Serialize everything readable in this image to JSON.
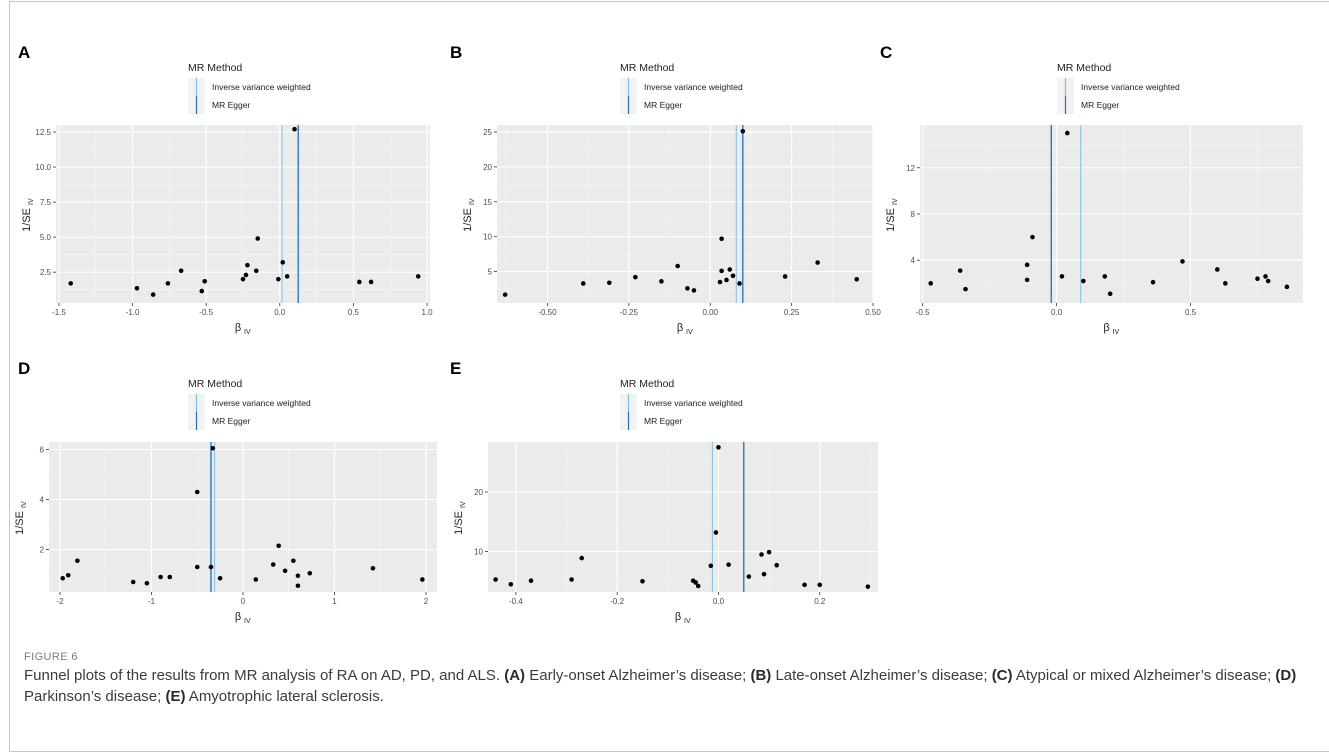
{
  "figure": {
    "label": "FIGURE 6",
    "caption": [
      {
        "t": "Funnel plots of the results from MR analysis of RA on AD, PD, and ALS. ",
        "b": false
      },
      {
        "t": "(A)",
        "b": true
      },
      {
        "t": " Early-onset Alzheimer’s disease; ",
        "b": false
      },
      {
        "t": "(B)",
        "b": true
      },
      {
        "t": " Late-onset Alzheimer’s disease; ",
        "b": false
      },
      {
        "t": "(C)",
        "b": true
      },
      {
        "t": " Atypical or mixed Alzheimer’s disease; ",
        "b": false
      },
      {
        "t": "(D)",
        "b": true
      },
      {
        "t": " Parkinson’s disease; ",
        "b": false
      },
      {
        "t": "(E)",
        "b": true
      },
      {
        "t": " Amyotrophic lateral sclerosis.",
        "b": false
      }
    ]
  },
  "colors": {
    "ivw": "#7fc1e6",
    "egger": "#1f6fb5",
    "panel_bg": "#ebebeb",
    "grid": "#ffffff",
    "point": "#000000"
  },
  "chart_data": [
    {
      "type": "scatter",
      "panel_label": "A",
      "legend": {
        "title": "MR Method",
        "entries": [
          "Inverse variance weighted",
          "MR Egger"
        ],
        "position": "top"
      },
      "xlabel_main": "β",
      "xlabel_sub": "IV",
      "ylabel_main": "1/SE",
      "ylabel_sub": "IV",
      "xlim": [
        -1.52,
        1.02
      ],
      "ylim": [
        0.3,
        13.0
      ],
      "xticks": [
        -1.5,
        -1.0,
        -0.5,
        0.0,
        0.5,
        1.0
      ],
      "xtick_labels": [
        "-1.5",
        "-1.0",
        "-0.5",
        "0.0",
        "0.5",
        "1.0"
      ],
      "yticks": [
        2.5,
        5.0,
        7.5,
        10.0,
        12.5
      ],
      "ytick_labels": [
        "2.5",
        "5.0",
        "7.5",
        "10.0",
        "12.5"
      ],
      "grid": true,
      "ivw_estimate": 0.015,
      "egger_estimate": 0.125,
      "points": [
        [
          -1.42,
          1.7
        ],
        [
          -0.97,
          1.35
        ],
        [
          -0.86,
          0.9
        ],
        [
          -0.76,
          1.7
        ],
        [
          -0.67,
          2.6
        ],
        [
          -0.53,
          1.15
        ],
        [
          -0.51,
          1.85
        ],
        [
          -0.25,
          2.0
        ],
        [
          -0.23,
          2.3
        ],
        [
          -0.22,
          3.0
        ],
        [
          -0.16,
          2.6
        ],
        [
          -0.15,
          4.9
        ],
        [
          -0.01,
          2.0
        ],
        [
          0.02,
          3.2
        ],
        [
          0.05,
          2.2
        ],
        [
          0.1,
          12.7
        ],
        [
          0.54,
          1.8
        ],
        [
          0.62,
          1.8
        ],
        [
          0.94,
          2.2
        ]
      ]
    },
    {
      "type": "scatter",
      "panel_label": "B",
      "legend": {
        "title": "MR Method",
        "entries": [
          "Inverse variance weighted",
          "MR Egger"
        ],
        "position": "top"
      },
      "xlabel_main": "β",
      "xlabel_sub": "IV",
      "ylabel_main": "1/SE",
      "ylabel_sub": "IV",
      "xlim": [
        -0.655,
        0.5
      ],
      "ylim": [
        0.5,
        26.0
      ],
      "xticks": [
        -0.5,
        -0.25,
        0.0,
        0.25,
        0.5
      ],
      "xtick_labels": [
        "-0.50",
        "-0.25",
        "0.00",
        "0.25",
        "0.50"
      ],
      "yticks": [
        5,
        10,
        15,
        20,
        25
      ],
      "ytick_labels": [
        "5",
        "10",
        "15",
        "20",
        "25"
      ],
      "grid": true,
      "ivw_estimate": 0.08,
      "egger_estimate": 0.1,
      "points": [
        [
          -0.63,
          1.7
        ],
        [
          -0.39,
          3.3
        ],
        [
          -0.31,
          3.4
        ],
        [
          -0.23,
          4.2
        ],
        [
          -0.15,
          3.6
        ],
        [
          -0.1,
          5.8
        ],
        [
          -0.07,
          2.6
        ],
        [
          -0.05,
          2.3
        ],
        [
          0.03,
          3.5
        ],
        [
          0.035,
          9.7
        ],
        [
          0.035,
          5.1
        ],
        [
          0.05,
          3.8
        ],
        [
          0.06,
          5.3
        ],
        [
          0.07,
          4.4
        ],
        [
          0.09,
          3.3
        ],
        [
          0.1,
          25.1
        ],
        [
          0.23,
          4.3
        ],
        [
          0.33,
          6.3
        ],
        [
          0.45,
          3.9
        ]
      ]
    },
    {
      "type": "scatter",
      "panel_label": "C",
      "legend": {
        "title": "MR Method",
        "entries": [
          "Inverse variance weighted",
          "MR Egger"
        ],
        "position": "top"
      },
      "xlabel_main": "β",
      "xlabel_sub": "IV",
      "ylabel_main": "1/SE",
      "ylabel_sub": "IV",
      "xlim": [
        -0.51,
        0.92
      ],
      "ylim": [
        0.3,
        15.7
      ],
      "xticks": [
        -0.5,
        0.0,
        0.5
      ],
      "xtick_labels": [
        "-0.5",
        "0.0",
        "0.5"
      ],
      "yticks": [
        4,
        8,
        12
      ],
      "ytick_labels": [
        "4",
        "8",
        "12"
      ],
      "grid": true,
      "ivw_estimate": 0.09,
      "egger_estimate": -0.02,
      "points": [
        [
          -0.47,
          2.0
        ],
        [
          -0.36,
          3.1
        ],
        [
          -0.34,
          1.5
        ],
        [
          -0.11,
          3.6
        ],
        [
          -0.11,
          2.3
        ],
        [
          -0.09,
          6.0
        ],
        [
          0.02,
          2.6
        ],
        [
          0.04,
          15.0
        ],
        [
          0.1,
          2.2
        ],
        [
          0.18,
          2.6
        ],
        [
          0.2,
          1.1
        ],
        [
          0.36,
          2.1
        ],
        [
          0.47,
          3.9
        ],
        [
          0.6,
          3.2
        ],
        [
          0.63,
          2.0
        ],
        [
          0.75,
          2.4
        ],
        [
          0.78,
          2.6
        ],
        [
          0.79,
          2.2
        ],
        [
          0.86,
          1.7
        ]
      ]
    },
    {
      "type": "scatter",
      "panel_label": "D",
      "legend": {
        "title": "MR Method",
        "entries": [
          "Inverse variance weighted",
          "MR Egger"
        ],
        "position": "top"
      },
      "xlabel_main": "β",
      "xlabel_sub": "IV",
      "ylabel_main": "1/SE",
      "ylabel_sub": "IV",
      "xlim": [
        -2.12,
        2.12
      ],
      "ylim": [
        0.3,
        6.3
      ],
      "xticks": [
        -2,
        -1,
        0,
        1,
        2
      ],
      "xtick_labels": [
        "-2",
        "-1",
        "0",
        "1",
        "2"
      ],
      "yticks": [
        2,
        4,
        6
      ],
      "ytick_labels": [
        "2",
        "4",
        "6"
      ],
      "grid": true,
      "ivw_estimate": -0.31,
      "egger_estimate": -0.35,
      "points": [
        [
          -1.97,
          0.85
        ],
        [
          -1.91,
          0.97
        ],
        [
          -1.81,
          1.55
        ],
        [
          -1.2,
          0.7
        ],
        [
          -1.05,
          0.65
        ],
        [
          -0.9,
          0.9
        ],
        [
          -0.8,
          0.9
        ],
        [
          -0.5,
          1.3
        ],
        [
          -0.5,
          4.3
        ],
        [
          -0.35,
          1.3
        ],
        [
          -0.33,
          6.05
        ],
        [
          -0.25,
          0.85
        ],
        [
          0.14,
          0.8
        ],
        [
          0.33,
          1.4
        ],
        [
          0.39,
          2.15
        ],
        [
          0.46,
          1.15
        ],
        [
          0.55,
          1.55
        ],
        [
          0.6,
          0.95
        ],
        [
          0.6,
          0.55
        ],
        [
          0.73,
          1.05
        ],
        [
          1.42,
          1.25
        ],
        [
          1.96,
          0.8
        ]
      ]
    },
    {
      "type": "scatter",
      "panel_label": "E",
      "legend": {
        "title": "MR Method",
        "entries": [
          "Inverse variance weighted",
          "MR Egger"
        ],
        "position": "top"
      },
      "xlabel_main": "β",
      "xlabel_sub": "IV",
      "ylabel_main": "1/SE",
      "ylabel_sub": "IV",
      "xlim": [
        -0.455,
        0.315
      ],
      "ylim": [
        3.2,
        28.4
      ],
      "xticks": [
        -0.4,
        -0.2,
        0.0,
        0.2
      ],
      "xtick_labels": [
        "-0.4",
        "-0.2",
        "0.0",
        "0.2"
      ],
      "yticks": [
        10,
        20
      ],
      "ytick_labels": [
        "10",
        "20"
      ],
      "grid": true,
      "ivw_estimate": -0.012,
      "egger_estimate": 0.05,
      "points": [
        [
          -0.44,
          5.3
        ],
        [
          -0.41,
          4.5
        ],
        [
          -0.37,
          5.1
        ],
        [
          -0.29,
          5.3
        ],
        [
          -0.27,
          8.9
        ],
        [
          -0.15,
          5.0
        ],
        [
          -0.05,
          5.1
        ],
        [
          -0.045,
          4.8
        ],
        [
          -0.04,
          4.2
        ],
        [
          -0.015,
          7.6
        ],
        [
          -0.005,
          13.2
        ],
        [
          0.0,
          27.5
        ],
        [
          0.02,
          7.8
        ],
        [
          0.06,
          5.8
        ],
        [
          0.085,
          9.5
        ],
        [
          0.09,
          6.2
        ],
        [
          0.1,
          9.9
        ],
        [
          0.115,
          7.7
        ],
        [
          0.17,
          4.4
        ],
        [
          0.2,
          4.4
        ],
        [
          0.295,
          4.1
        ]
      ]
    }
  ]
}
